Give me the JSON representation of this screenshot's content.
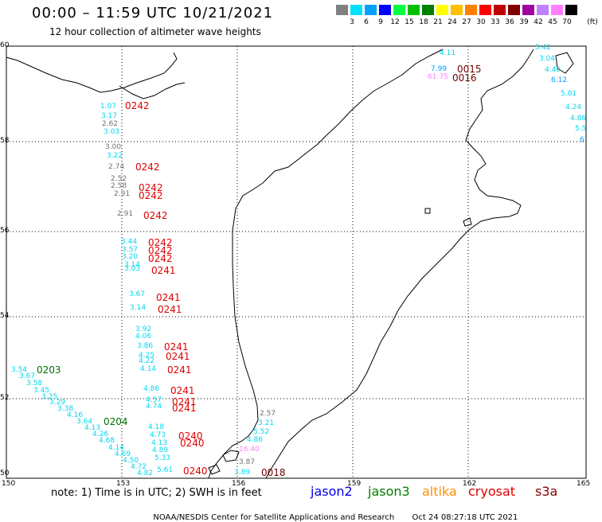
{
  "header": {
    "title": "00:00 – 11:59 UTC 10/21/2021",
    "subtitle": "12 hour collection of altimeter wave heights"
  },
  "legend": {
    "unit": "(ft)",
    "bins": [
      {
        "label": "3",
        "color": "#808080"
      },
      {
        "label": "6",
        "color": "#00e0ff"
      },
      {
        "label": "9",
        "color": "#00a0ff"
      },
      {
        "label": "12",
        "color": "#0000ff"
      },
      {
        "label": "15",
        "color": "#00ff40"
      },
      {
        "label": "18",
        "color": "#00c000"
      },
      {
        "label": "21",
        "color": "#008000"
      },
      {
        "label": "24",
        "color": "#ffff00"
      },
      {
        "label": "27",
        "color": "#ffc000"
      },
      {
        "label": "30",
        "color": "#ff8000"
      },
      {
        "label": "33",
        "color": "#ff0000"
      },
      {
        "label": "36",
        "color": "#c00000"
      },
      {
        "label": "39",
        "color": "#800000"
      },
      {
        "label": "42",
        "color": "#a000a0"
      },
      {
        "label": "45",
        "color": "#c080ff"
      },
      {
        "label": "70",
        "color": "#ff80ff"
      },
      {
        "label": "",
        "color": "#000000"
      }
    ]
  },
  "axes": {
    "lon_ticks": [
      "150",
      "153",
      "156",
      "159",
      "162",
      "165"
    ],
    "lat_ticks": [
      "60",
      "58",
      "56",
      "54",
      "52",
      "50"
    ]
  },
  "observations": [
    {
      "v": "1.07",
      "c": "#00d8f0"
    },
    {
      "v": "3.17",
      "c": "#00d8f0"
    },
    {
      "v": "3.03",
      "c": "#00d8f0"
    },
    {
      "v": "2.62",
      "c": "#707070"
    },
    {
      "v": "3.00",
      "c": "#707070"
    },
    {
      "v": "3.22",
      "c": "#00d8f0"
    },
    {
      "v": "2.74",
      "c": "#707070"
    },
    {
      "v": "2.52",
      "c": "#707070"
    },
    {
      "v": "2.58",
      "c": "#707070"
    },
    {
      "v": "2.91",
      "c": "#707070"
    },
    {
      "v": "2.91",
      "c": "#707070"
    },
    {
      "v": "3.44",
      "c": "#00d8f0"
    },
    {
      "v": "3.57",
      "c": "#00d8f0"
    },
    {
      "v": "3.20",
      "c": "#00d8f0"
    },
    {
      "v": "3.14",
      "c": "#00d8f0"
    },
    {
      "v": "3.03",
      "c": "#00d8f0"
    },
    {
      "v": "3.67",
      "c": "#00d8f0"
    },
    {
      "v": "3.14",
      "c": "#00d8f0"
    },
    {
      "v": "3.92",
      "c": "#00d8f0"
    },
    {
      "v": "4.06",
      "c": "#00d8f0"
    },
    {
      "v": "3.86",
      "c": "#00d8f0"
    },
    {
      "v": "4.25",
      "c": "#00d8f0"
    },
    {
      "v": "4.22",
      "c": "#00d8f0"
    },
    {
      "v": "4.14",
      "c": "#00d8f0"
    },
    {
      "v": "4.86",
      "c": "#00d8f0"
    },
    {
      "v": "4.57",
      "c": "#00d8f0"
    },
    {
      "v": "4.74",
      "c": "#00d8f0"
    },
    {
      "v": "4.18",
      "c": "#00d8f0"
    },
    {
      "v": "4.73",
      "c": "#00d8f0"
    },
    {
      "v": "4.13",
      "c": "#00d8f0"
    },
    {
      "v": "4.89",
      "c": "#00d8f0"
    },
    {
      "v": "5.33",
      "c": "#00d8f0"
    },
    {
      "v": "5.61",
      "c": "#00d8f0"
    },
    {
      "v": "3.54",
      "c": "#00d8f0"
    },
    {
      "v": "3.67",
      "c": "#00d8f0"
    },
    {
      "v": "3.58",
      "c": "#00d8f0"
    },
    {
      "v": "3.45",
      "c": "#00d8f0"
    },
    {
      "v": "3.25",
      "c": "#00d8f0"
    },
    {
      "v": "3.29",
      "c": "#00d8f0"
    },
    {
      "v": "3.38",
      "c": "#00d8f0"
    },
    {
      "v": "4.16",
      "c": "#00d8f0"
    },
    {
      "v": "3.64",
      "c": "#00d8f0"
    },
    {
      "v": "4.13",
      "c": "#00d8f0"
    },
    {
      "v": "4.26",
      "c": "#00d8f0"
    },
    {
      "v": "4.68",
      "c": "#00d8f0"
    },
    {
      "v": "4.14",
      "c": "#00d8f0"
    },
    {
      "v": "4.69",
      "c": "#00d8f0"
    },
    {
      "v": "4.50",
      "c": "#00d8f0"
    },
    {
      "v": "4.72",
      "c": "#00d8f0"
    },
    {
      "v": "4.82",
      "c": "#00d8f0"
    },
    {
      "v": "2.57",
      "c": "#707070"
    },
    {
      "v": "3.21",
      "c": "#00d8f0"
    },
    {
      "v": "5.52",
      "c": "#00d8f0"
    },
    {
      "v": "4.86",
      "c": "#00d8f0"
    },
    {
      "v": "16.40",
      "c": "#ff80ff"
    },
    {
      "v": "3.87",
      "c": "#707070"
    },
    {
      "v": "3.89",
      "c": "#00d8f0"
    },
    {
      "v": "4.11",
      "c": "#00d8f0"
    },
    {
      "v": "7.99",
      "c": "#00a0ff"
    },
    {
      "v": "61.75",
      "c": "#ff80ff"
    },
    {
      "v": "3.42",
      "c": "#00d8f0"
    },
    {
      "v": "3.04",
      "c": "#00d8f0"
    },
    {
      "v": "4.40",
      "c": "#00d8f0"
    },
    {
      "v": "6.12",
      "c": "#00a0ff"
    },
    {
      "v": "5.01",
      "c": "#00d8f0"
    },
    {
      "v": "4.24",
      "c": "#00d8f0"
    },
    {
      "v": "4.86",
      "c": "#00d8f0"
    },
    {
      "v": "5.5",
      "c": "#00d8f0"
    },
    {
      "v": "6.",
      "c": "#00a0ff"
    }
  ],
  "pass_times": [
    {
      "t": "0242",
      "c": "#e00000"
    },
    {
      "t": "0242",
      "c": "#e00000"
    },
    {
      "t": "0242",
      "c": "#e00000"
    },
    {
      "t": "0242",
      "c": "#e00000"
    },
    {
      "t": "0242",
      "c": "#e00000"
    },
    {
      "t": "0242",
      "c": "#e00000"
    },
    {
      "t": "0242",
      "c": "#e00000"
    },
    {
      "t": "0242",
      "c": "#e00000"
    },
    {
      "t": "0241",
      "c": "#e00000"
    },
    {
      "t": "0241",
      "c": "#e00000"
    },
    {
      "t": "0241",
      "c": "#e00000"
    },
    {
      "t": "0241",
      "c": "#e00000"
    },
    {
      "t": "0241",
      "c": "#e00000"
    },
    {
      "t": "0241",
      "c": "#e00000"
    },
    {
      "t": "0241",
      "c": "#e00000"
    },
    {
      "t": "0241",
      "c": "#e00000"
    },
    {
      "t": "0241",
      "c": "#e00000"
    },
    {
      "t": "0240",
      "c": "#e00000"
    },
    {
      "t": "0240",
      "c": "#e00000"
    },
    {
      "t": "0240",
      "c": "#e00000"
    },
    {
      "t": "0203",
      "c": "#007000"
    },
    {
      "t": "0204",
      "c": "#007000"
    },
    {
      "t": "0015",
      "c": "#700000"
    },
    {
      "t": "0016",
      "c": "#700000"
    },
    {
      "t": "0018",
      "c": "#700000"
    }
  ],
  "footer": {
    "note": "note: 1) Time is in UTC; 2) SWH is in feet",
    "missions": [
      {
        "name": "jason2",
        "color": "#0000e0"
      },
      {
        "name": "jason3",
        "color": "#008000"
      },
      {
        "name": "altika",
        "color": "#ff9000"
      },
      {
        "name": "cryosat",
        "color": "#e00000"
      },
      {
        "name": "s3a",
        "color": "#800000"
      }
    ],
    "credit": "NOAA/NESDIS Center for Satellite Applications and Research",
    "generated": "Oct 24 08:27:18 UTC 2021"
  }
}
